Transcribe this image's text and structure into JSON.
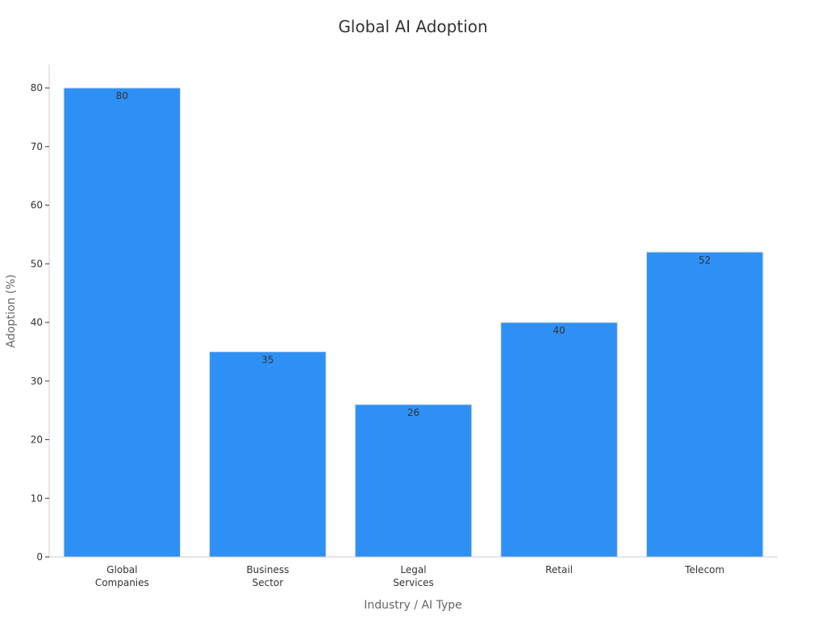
{
  "chart_data": {
    "type": "bar",
    "title": "Global AI Adoption",
    "xlabel": "Industry / AI Type",
    "ylabel": "Adoption (%)",
    "categories": [
      [
        "Global",
        "Companies"
      ],
      [
        "Business",
        "Sector"
      ],
      [
        "Legal",
        "Services"
      ],
      [
        "Retail"
      ],
      [
        "Telecom"
      ]
    ],
    "values": [
      80,
      35,
      26,
      40,
      52
    ],
    "data_labels": [
      "80",
      "35",
      "26",
      "40",
      "52"
    ],
    "ylim": [
      0,
      84
    ],
    "yticks": [
      0,
      10,
      20,
      30,
      40,
      50,
      60,
      70,
      80
    ],
    "bar_color": "#2E90F5",
    "grid": false,
    "legend": "none"
  }
}
